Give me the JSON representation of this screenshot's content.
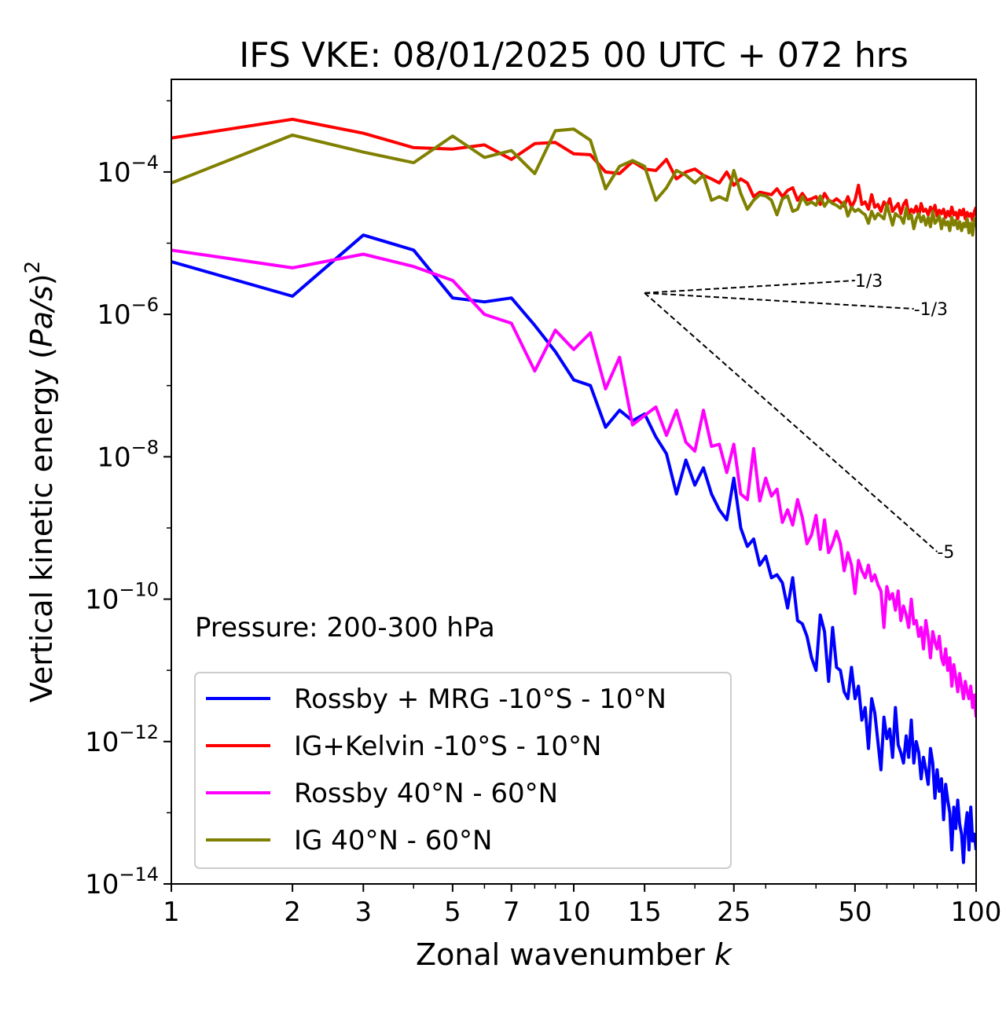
{
  "chart_data": {
    "type": "line",
    "title": "IFS VKE: 08/01/2025 00 UTC + 072 hrs",
    "xlabel_main": "Zonal wavenumber ",
    "xlabel_var": "k",
    "ylabel_main": "Vertical kinetic energy (",
    "ylabel_var": "Pa/s",
    "ylabel_close": ")",
    "ylabel_sup": "2",
    "annotation": "Pressure: 200-300 hPa",
    "x_scale": "log",
    "y_scale": "log",
    "xlim": [
      1,
      100
    ],
    "ylim": [
      1e-14,
      0.002
    ],
    "x_ticks": [
      1,
      2,
      3,
      5,
      7,
      10,
      15,
      25,
      50,
      100
    ],
    "x_tick_labels": [
      "1",
      "2",
      "3",
      "5",
      "7",
      "10",
      "15",
      "25",
      "50",
      "100"
    ],
    "y_ticks": [
      1e-14,
      1e-12,
      1e-10,
      1e-08,
      1e-06,
      0.0001
    ],
    "y_tick_bases": [
      "10",
      "10",
      "10",
      "10",
      "10",
      "10"
    ],
    "y_tick_exps": [
      "−14",
      "−12",
      "−10",
      "−8",
      "−6",
      "−4"
    ],
    "legend_position": "lower-left",
    "reference_slopes": [
      {
        "label": "1/3",
        "slope": 0.3333,
        "x_start": 15,
        "y_start": 2e-06,
        "x_end": 50
      },
      {
        "label": "-1/3",
        "slope": -0.3333,
        "x_start": 15,
        "y_start": 2e-06,
        "x_end": 70
      },
      {
        "label": "-5",
        "slope": -5,
        "x_start": 15,
        "y_start": 2e-06,
        "x_end": 80
      }
    ],
    "series": [
      {
        "name": "Rossby + MRG -10°S - 10°N",
        "color": "#0000ff",
        "x": [
          1,
          2,
          3,
          4,
          5,
          6,
          7,
          8,
          9,
          10,
          11,
          12,
          13,
          14,
          15,
          16,
          17,
          18,
          19,
          20,
          21,
          22,
          23,
          24,
          25,
          26,
          27,
          28,
          29,
          30,
          31,
          32,
          33,
          34,
          35,
          36,
          37,
          38,
          39,
          40,
          41,
          42,
          43,
          44,
          45,
          46,
          47,
          48,
          49,
          50,
          51,
          52,
          53,
          54,
          55,
          56,
          57,
          58,
          59,
          60,
          61,
          62,
          63,
          64,
          65,
          66,
          67,
          68,
          69,
          70,
          71,
          72,
          73,
          74,
          75,
          76,
          77,
          78,
          79,
          80,
          81,
          82,
          83,
          84,
          85,
          86,
          87,
          88,
          89,
          90,
          91,
          92,
          93,
          94,
          95,
          96,
          97,
          98,
          99,
          100
        ],
        "y": [
          5.5e-06,
          1.8e-06,
          1.3e-05,
          8e-06,
          1.7e-06,
          1.5e-06,
          1.7e-06,
          7e-07,
          3e-07,
          1.2e-07,
          1e-07,
          2.6e-08,
          4.5e-08,
          3.2e-08,
          4e-08,
          1.9e-08,
          1.1e-08,
          3e-09,
          9e-09,
          4e-09,
          7e-09,
          3e-09,
          1.8e-09,
          1.3e-09,
          5e-09,
          1e-09,
          5.5e-10,
          7e-10,
          3e-10,
          4e-10,
          2e-10,
          2.2e-10,
          1.7e-10,
          7.5e-11,
          2e-10,
          5e-11,
          4.5e-11,
          3e-11,
          1.5e-11,
          1e-11,
          6e-11,
          3.5e-11,
          7e-12,
          4e-11,
          1.1e-11,
          1e-11,
          5e-12,
          4e-12,
          1.1e-11,
          4e-12,
          6e-12,
          2e-12,
          3e-12,
          8e-13,
          4e-12,
          2.5e-12,
          1e-12,
          4e-13,
          2.2e-12,
          1.1e-12,
          1.5e-12,
          6e-13,
          3e-12,
          9e-13,
          7e-13,
          5e-13,
          1.2e-12,
          6e-13,
          2e-12,
          5e-13,
          1e-12,
          7e-13,
          3e-13,
          6e-13,
          4e-13,
          2.5e-13,
          8e-13,
          5e-13,
          1.6e-13,
          4e-13,
          2e-13,
          3e-13,
          8e-14,
          2.5e-13,
          1.5e-13,
          1e-13,
          3e-14,
          1.2e-13,
          6e-14,
          1.5e-13,
          7e-14,
          5e-14,
          2e-14,
          6e-14,
          1e-13,
          3e-14,
          1.2e-13,
          4e-14,
          5e-14,
          3e-14
        ]
      },
      {
        "name": "IG+Kelvin -10°S - 10°N",
        "color": "#ff0000",
        "x": [
          1,
          2,
          3,
          4,
          5,
          6,
          7,
          8,
          9,
          10,
          11,
          12,
          13,
          14,
          15,
          16,
          17,
          18,
          19,
          20,
          21,
          22,
          23,
          24,
          25,
          26,
          27,
          28,
          29,
          30,
          31,
          32,
          33,
          34,
          35,
          36,
          37,
          38,
          39,
          40,
          41,
          42,
          43,
          44,
          45,
          46,
          47,
          48,
          49,
          50,
          51,
          52,
          53,
          54,
          55,
          56,
          57,
          58,
          59,
          60,
          61,
          62,
          63,
          64,
          65,
          66,
          67,
          68,
          69,
          70,
          71,
          72,
          73,
          74,
          75,
          76,
          77,
          78,
          79,
          80,
          81,
          82,
          83,
          84,
          85,
          86,
          87,
          88,
          89,
          90,
          91,
          92,
          93,
          94,
          95,
          96,
          97,
          98,
          99,
          100
        ],
        "y": [
          0.0003,
          0.00055,
          0.00035,
          0.00022,
          0.00021,
          0.00024,
          0.00015,
          0.00025,
          0.00026,
          0.00018,
          0.000175,
          0.0001,
          9.5e-05,
          0.00014,
          0.00011,
          0.000105,
          0.00015,
          8e-05,
          0.0001,
          0.00011,
          9e-05,
          8e-05,
          7e-05,
          0.0001,
          6.5e-05,
          8e-05,
          7e-05,
          4.5e-05,
          5.2e-05,
          5e-05,
          4.8e-05,
          5.8e-05,
          4.5e-05,
          5.5e-05,
          6e-05,
          4e-05,
          5e-05,
          4e-05,
          4.2e-05,
          4.5e-05,
          3.5e-05,
          5e-05,
          4e-05,
          3.8e-05,
          4.2e-05,
          3.8e-05,
          3.3e-05,
          4.5e-05,
          3.2e-05,
          4e-05,
          6.5e-05,
          3.5e-05,
          3.8e-05,
          3e-05,
          4.8e-05,
          3.2e-05,
          3.5e-05,
          2.8e-05,
          3.8e-05,
          3.3e-05,
          4.2e-05,
          2.8e-05,
          3.2e-05,
          3.6e-05,
          2.6e-05,
          3.5e-05,
          4e-05,
          2.5e-05,
          3e-05,
          2.7e-05,
          3.3e-05,
          2.4e-05,
          3.6e-05,
          2.8e-05,
          3e-05,
          2.5e-05,
          3.2e-05,
          2.7e-05,
          3.4e-05,
          2.4e-05,
          2.9e-05,
          2.6e-05,
          3e-05,
          2.3e-05,
          2.8e-05,
          2.4e-05,
          3.2e-05,
          2.5e-05,
          2.7e-05,
          2.2e-05,
          2.9e-05,
          2.5e-05,
          3e-05,
          2.2e-05,
          2.7e-05,
          2.4e-05,
          2.6e-05,
          2.1e-05,
          2.8e-05,
          3.2e-05
        ]
      },
      {
        "name": "Rossby 40°N - 60°N",
        "color": "#ff00ff",
        "x": [
          1,
          2,
          3,
          4,
          5,
          6,
          7,
          8,
          9,
          10,
          11,
          12,
          13,
          14,
          15,
          16,
          17,
          18,
          19,
          20,
          21,
          22,
          23,
          24,
          25,
          26,
          27,
          28,
          29,
          30,
          31,
          32,
          33,
          34,
          35,
          36,
          37,
          38,
          39,
          40,
          41,
          42,
          43,
          44,
          45,
          46,
          47,
          48,
          49,
          50,
          51,
          52,
          53,
          54,
          55,
          56,
          57,
          58,
          59,
          60,
          61,
          62,
          63,
          64,
          65,
          66,
          67,
          68,
          69,
          70,
          71,
          72,
          73,
          74,
          75,
          76,
          77,
          78,
          79,
          80,
          81,
          82,
          83,
          84,
          85,
          86,
          87,
          88,
          89,
          90,
          91,
          92,
          93,
          94,
          95,
          96,
          97,
          98,
          99,
          100
        ],
        "y": [
          8e-06,
          4.5e-06,
          7e-06,
          4.7e-06,
          3e-06,
          1e-06,
          7.5e-07,
          1.6e-07,
          6e-07,
          3.2e-07,
          5.5e-07,
          9e-08,
          2.5e-07,
          2.8e-08,
          3.8e-08,
          5e-08,
          2e-08,
          4.5e-08,
          1.6e-08,
          1.2e-08,
          4.5e-08,
          1.4e-08,
          1.5e-08,
          6e-09,
          1.5e-08,
          3e-09,
          2.5e-09,
          1.3e-08,
          2.4e-09,
          5e-09,
          2.8e-09,
          3.5e-09,
          1.2e-09,
          1.8e-09,
          1.1e-09,
          2.5e-09,
          1.4e-09,
          6e-10,
          8e-10,
          1.5e-09,
          5e-10,
          1.3e-09,
          4.5e-10,
          6e-10,
          9e-10,
          6e-10,
          2.5e-10,
          4.5e-10,
          3e-10,
          1.2e-10,
          3.5e-10,
          2.5e-10,
          2e-10,
          3e-10,
          1.8e-10,
          2.2e-10,
          1.6e-10,
          1.3e-10,
          4e-11,
          1.5e-10,
          1e-10,
          1.2e-10,
          7e-11,
          1.3e-10,
          5e-11,
          8e-11,
          6e-11,
          4e-11,
          1e-10,
          4.5e-11,
          5e-11,
          3e-11,
          4e-11,
          2e-11,
          5e-11,
          3e-11,
          1.5e-11,
          3.5e-11,
          2.5e-11,
          2e-11,
          3e-11,
          1.5e-11,
          1.2e-11,
          2e-11,
          1e-11,
          1.5e-11,
          6e-12,
          1.2e-11,
          8e-12,
          5e-12,
          9e-12,
          6e-12,
          4e-12,
          7e-12,
          5e-12,
          4e-12,
          6e-12,
          3e-12,
          4.5e-12,
          2.2e-12
        ]
      },
      {
        "name": "IG 40°N - 60°N",
        "color": "#808000",
        "x": [
          1,
          2,
          3,
          4,
          5,
          6,
          7,
          8,
          9,
          10,
          11,
          12,
          13,
          14,
          15,
          16,
          17,
          18,
          19,
          20,
          21,
          22,
          23,
          24,
          25,
          26,
          27,
          28,
          29,
          30,
          31,
          32,
          33,
          34,
          35,
          36,
          37,
          38,
          39,
          40,
          41,
          42,
          43,
          44,
          45,
          46,
          47,
          48,
          49,
          50,
          51,
          52,
          53,
          54,
          55,
          56,
          57,
          58,
          59,
          60,
          61,
          62,
          63,
          64,
          65,
          66,
          67,
          68,
          69,
          70,
          71,
          72,
          73,
          74,
          75,
          76,
          77,
          78,
          79,
          80,
          81,
          82,
          83,
          84,
          85,
          86,
          87,
          88,
          89,
          90,
          91,
          92,
          93,
          94,
          95,
          96,
          97,
          98,
          99,
          100
        ],
        "y": [
          7e-05,
          0.00033,
          0.00019,
          0.000135,
          0.00032,
          0.00016,
          0.0002,
          9.5e-05,
          0.00038,
          0.0004,
          0.00028,
          5.8e-05,
          0.00012,
          0.000145,
          0.00012,
          4e-05,
          6e-05,
          0.000105,
          9e-05,
          7e-05,
          9e-05,
          4e-05,
          4.5e-05,
          4e-05,
          0.000105,
          5e-05,
          3e-05,
          4e-05,
          4.8e-05,
          4.6e-05,
          4e-05,
          2.5e-05,
          4.2e-05,
          4.6e-05,
          2.8e-05,
          3e-05,
          4.5e-05,
          3.5e-05,
          3.8e-05,
          3.4e-05,
          4.6e-05,
          3.3e-05,
          4e-05,
          3.6e-05,
          3.4e-05,
          3.1e-05,
          3.8e-05,
          2.4e-05,
          3.2e-05,
          2.8e-05,
          3e-05,
          2.7e-05,
          2.5e-05,
          1.9e-05,
          2.8e-05,
          2.2e-05,
          2.6e-05,
          2.4e-05,
          2.2e-05,
          3.5e-05,
          2.5e-05,
          1.8e-05,
          2.6e-05,
          2.4e-05,
          2.3e-05,
          1.9e-05,
          3.1e-05,
          2.2e-05,
          2.5e-05,
          1.6e-05,
          2.2e-05,
          2.6e-05,
          2e-05,
          2.4e-05,
          1.8e-05,
          2.3e-05,
          1.7e-05,
          2.8e-05,
          1.9e-05,
          2.1e-05,
          2.4e-05,
          1.6e-05,
          2.2e-05,
          1.8e-05,
          2e-05,
          1.5e-05,
          2.3e-05,
          1.8e-05,
          2.1e-05,
          1.6e-05,
          2e-05,
          1.5e-05,
          1.9e-05,
          1.7e-05,
          2.2e-05,
          1.4e-05,
          1.9e-05,
          1.3e-05,
          2.2e-05,
          1.7e-05
        ]
      }
    ]
  }
}
